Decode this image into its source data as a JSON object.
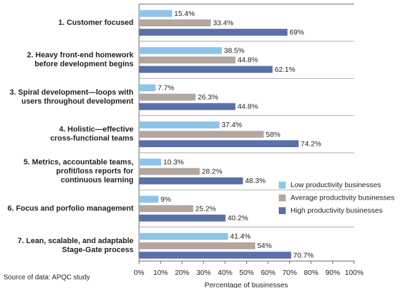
{
  "chart_data": {
    "type": "hbar",
    "categories": [
      [
        "1. Customer focused"
      ],
      [
        "2. Heavy front-end homework",
        "before development begins"
      ],
      [
        "3. Spiral development—loops with",
        "users throughout development"
      ],
      [
        "4. Holistic—effective",
        "cross-functional teams"
      ],
      [
        "5. Metrics, accountable teams,",
        "profit/loss reports for",
        "continuous learning"
      ],
      [
        "6. Focus and porfolio management"
      ],
      [
        "7. Lean, scalable, and adaptable",
        "Stage-Gate process"
      ]
    ],
    "series": [
      {
        "name": "Low productivity businesses",
        "color": "#8ec4ea",
        "values": [
          15.4,
          38.5,
          7.7,
          37.4,
          10.3,
          9,
          41.4
        ],
        "value_labels": [
          "15.4%",
          "38.5%",
          "7.7%",
          "37.4%",
          "10.3%",
          "9%",
          "41.4%"
        ]
      },
      {
        "name": "Average productivity businesses",
        "color": "#b4a7a0",
        "values": [
          33.4,
          44.8,
          26.3,
          58,
          28.2,
          25.2,
          54
        ],
        "value_labels": [
          "33.4%",
          "44.8%",
          "26.3%",
          "58%",
          "28.2%",
          "25.2%",
          "54%"
        ]
      },
      {
        "name": "High productivity businesses",
        "color": "#5b70a8",
        "values": [
          69,
          62.1,
          44.8,
          74.2,
          48.3,
          40.2,
          70.7
        ],
        "value_labels": [
          "69%",
          "62.1%",
          "44.8%",
          "74.2%",
          "48.3%",
          "40.2%",
          "70.7%"
        ]
      }
    ],
    "xlim": [
      0,
      100
    ],
    "xticks": [
      {
        "value": 0,
        "label": "0%"
      },
      {
        "value": 10,
        "label": "10%"
      },
      {
        "value": 20,
        "label": "20%"
      },
      {
        "value": 30,
        "label": "30%"
      },
      {
        "value": 40,
        "label": "40%"
      },
      {
        "value": 50,
        "label": "50%"
      },
      {
        "value": 60,
        "label": "60%"
      },
      {
        "value": 70,
        "label": "70%"
      },
      {
        "value": 80,
        "label": "80%"
      },
      {
        "value": 90,
        "label": "90%"
      },
      {
        "value": 100,
        "label": "100%"
      }
    ],
    "x_label": "Percentage of businesses",
    "source": "Source of data: APQC study",
    "legend": "lower right"
  }
}
